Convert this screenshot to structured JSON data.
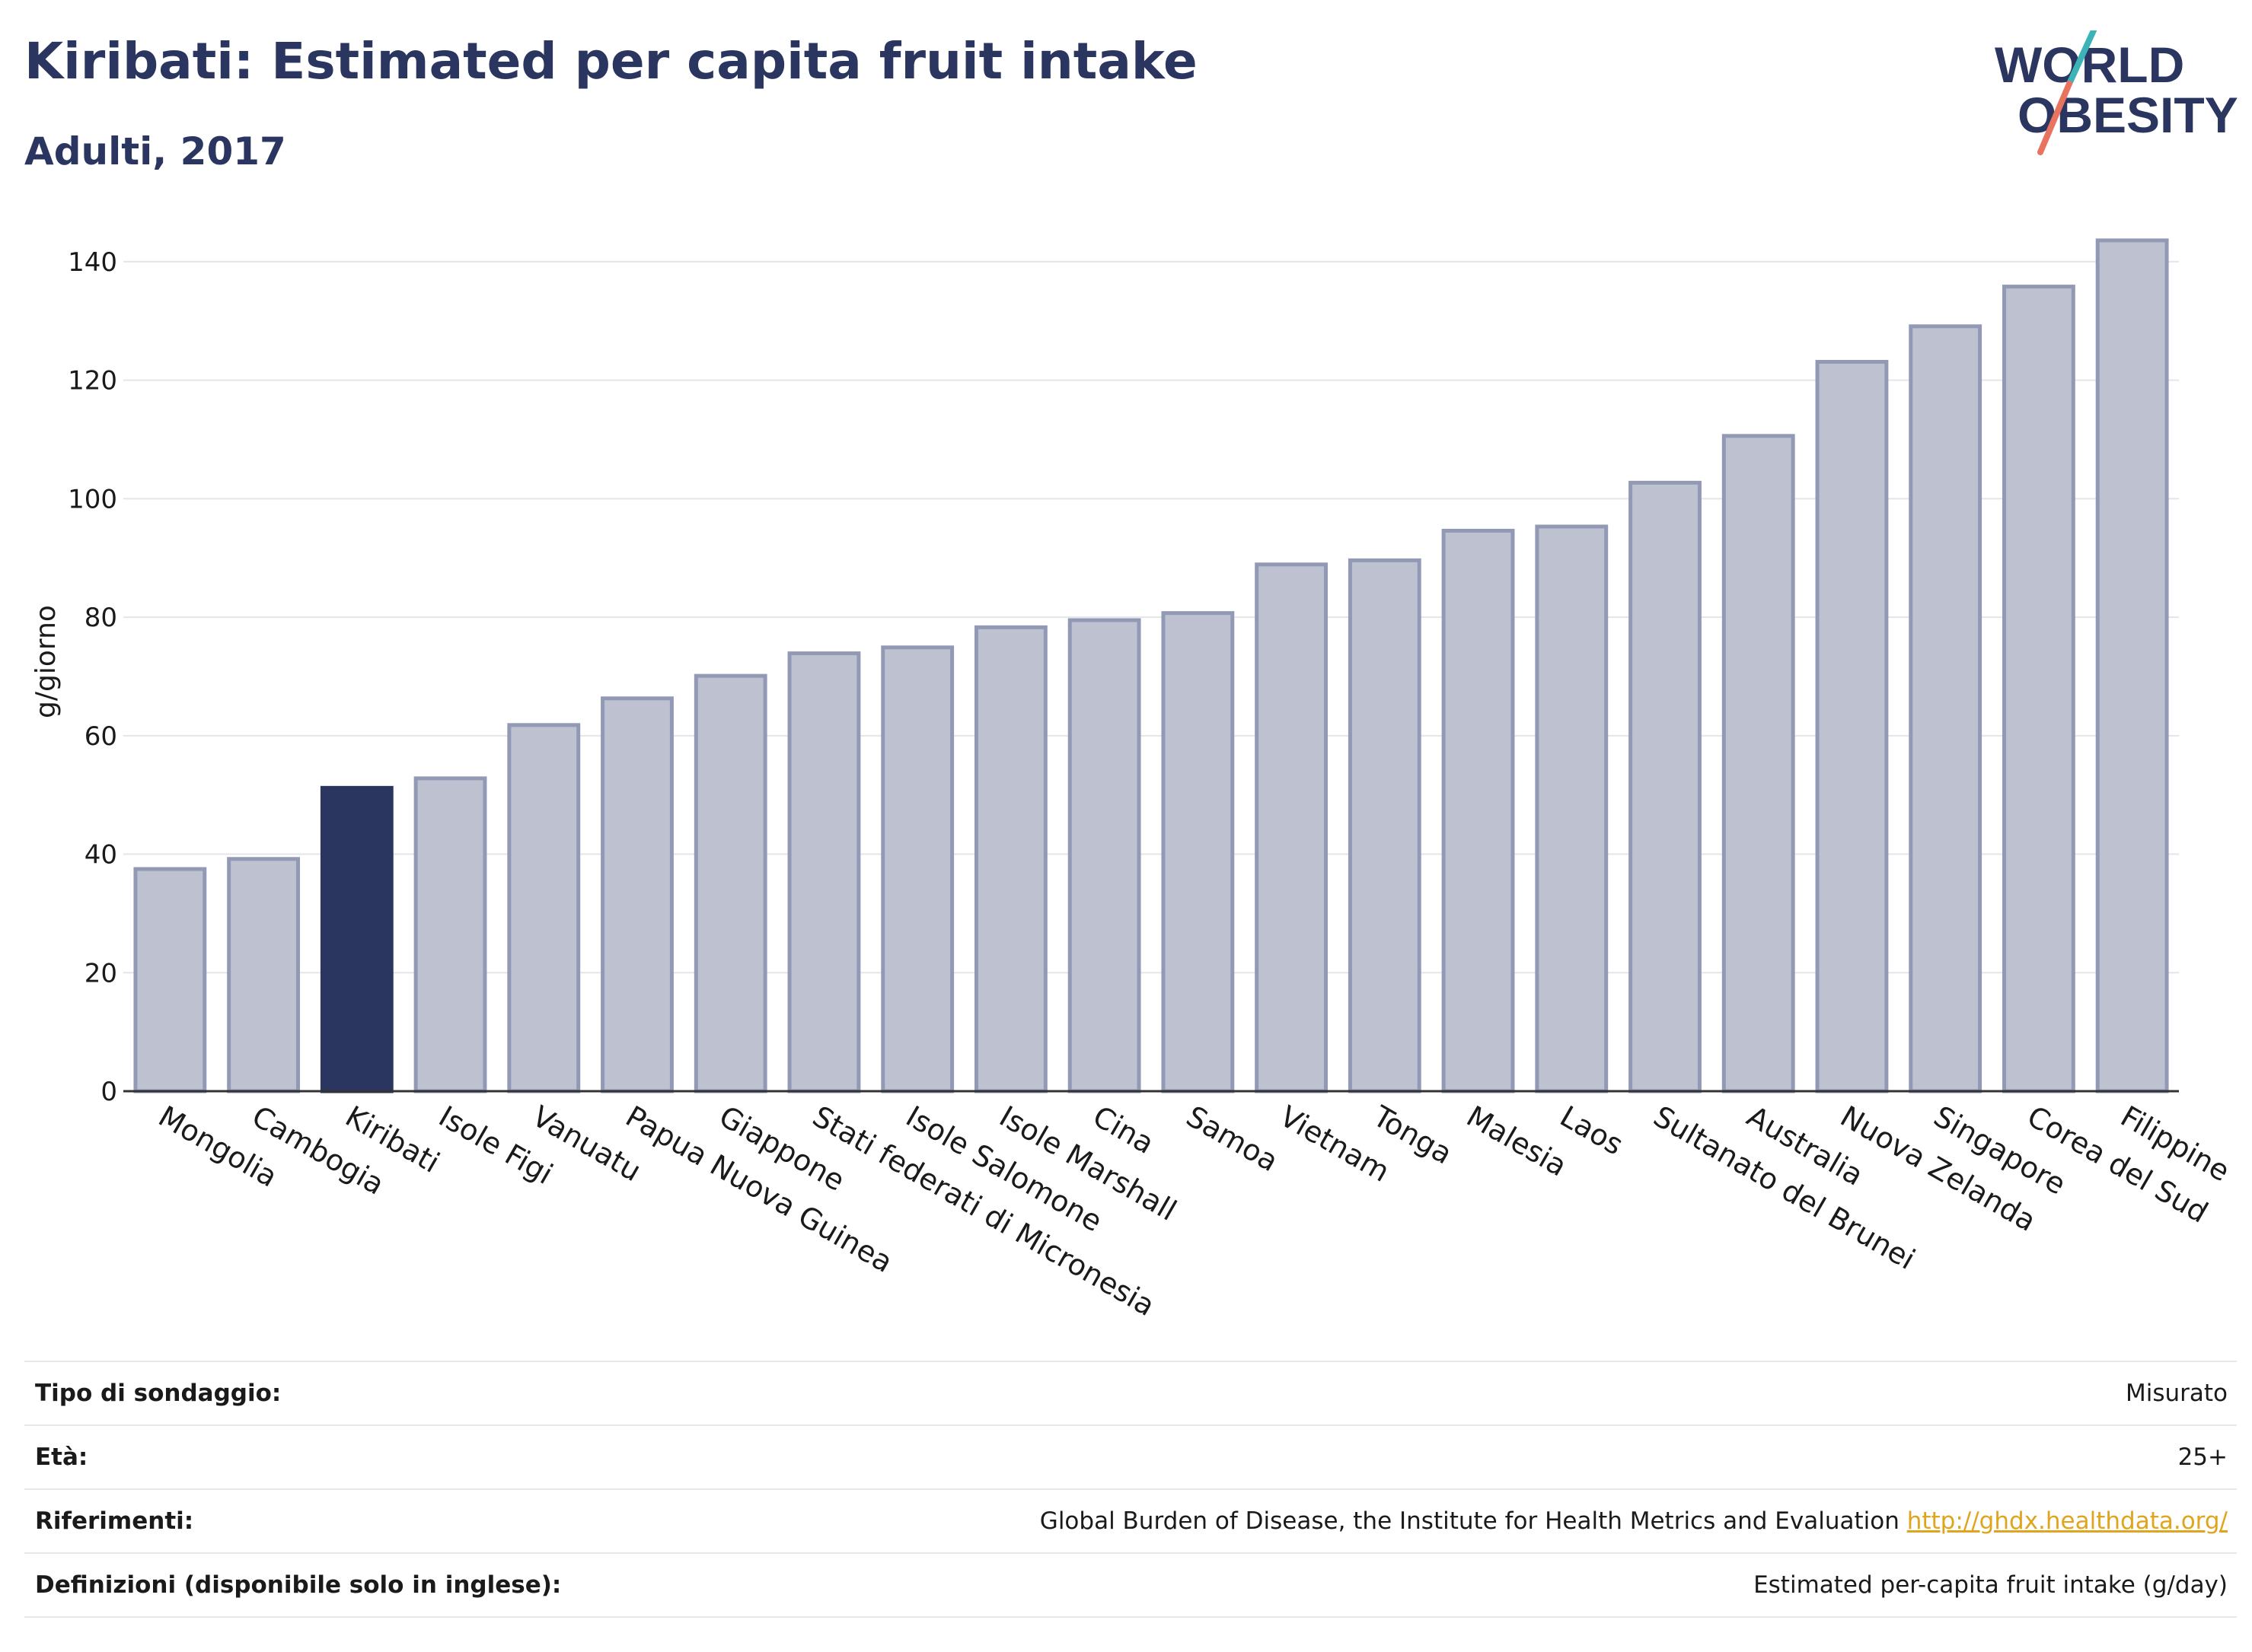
{
  "header": {
    "title": "Kiribati: Estimated per capita fruit intake",
    "subtitle": "Adulti, 2017"
  },
  "logo": {
    "line1": "WORLD",
    "line2": "OBESITY",
    "colors": {
      "text": "#2a3560",
      "slash_teal": "#3bb3b7",
      "slash_coral": "#e8735f"
    }
  },
  "chart_data": {
    "type": "bar",
    "ylabel": "g/giorno",
    "xlabel": "",
    "ylim": [
      0,
      145
    ],
    "yticks": [
      0,
      20,
      40,
      60,
      80,
      100,
      120,
      140
    ],
    "grid": true,
    "highlight_category": "Kiribati",
    "colors": {
      "bar": "#bec2d0",
      "bar_edge": "#9299b4",
      "highlight": "#2a3560",
      "grid": "#e4e5ea"
    },
    "categories": [
      "Mongolia",
      "Cambogia",
      "Kiribati",
      "Isole Figi",
      "Vanuatu",
      "Papua Nuova Guinea",
      "Giappone",
      "Stati federati di Micronesia",
      "Isole Salomone",
      "Isole Marshall",
      "Cina",
      "Samoa",
      "Vietnam",
      "Tonga",
      "Malesia",
      "Laos",
      "Sultanato del Brunei",
      "Australia",
      "Nuova Zelanda",
      "Singapore",
      "Corea del Sud",
      "Filippine"
    ],
    "values": [
      37.5,
      39.2,
      51.2,
      52.8,
      61.8,
      66.3,
      70.1,
      73.9,
      74.9,
      78.3,
      79.5,
      80.7,
      88.9,
      89.6,
      94.6,
      95.3,
      102.7,
      110.6,
      123.1,
      129.1,
      135.8,
      143.6
    ]
  },
  "info": {
    "rows": [
      {
        "label": "Tipo di sondaggio:",
        "value": "Misurato"
      },
      {
        "label": "Età:",
        "value": "25+"
      },
      {
        "label": "Riferimenti:",
        "value": "Global Burden of Disease, the Institute for Health Metrics and Evaluation",
        "link": "http://ghdx.healthdata.org/"
      },
      {
        "label": "Definizioni (disponibile solo in inglese):",
        "value": "Estimated per-capita fruit intake (g/day)"
      }
    ]
  }
}
